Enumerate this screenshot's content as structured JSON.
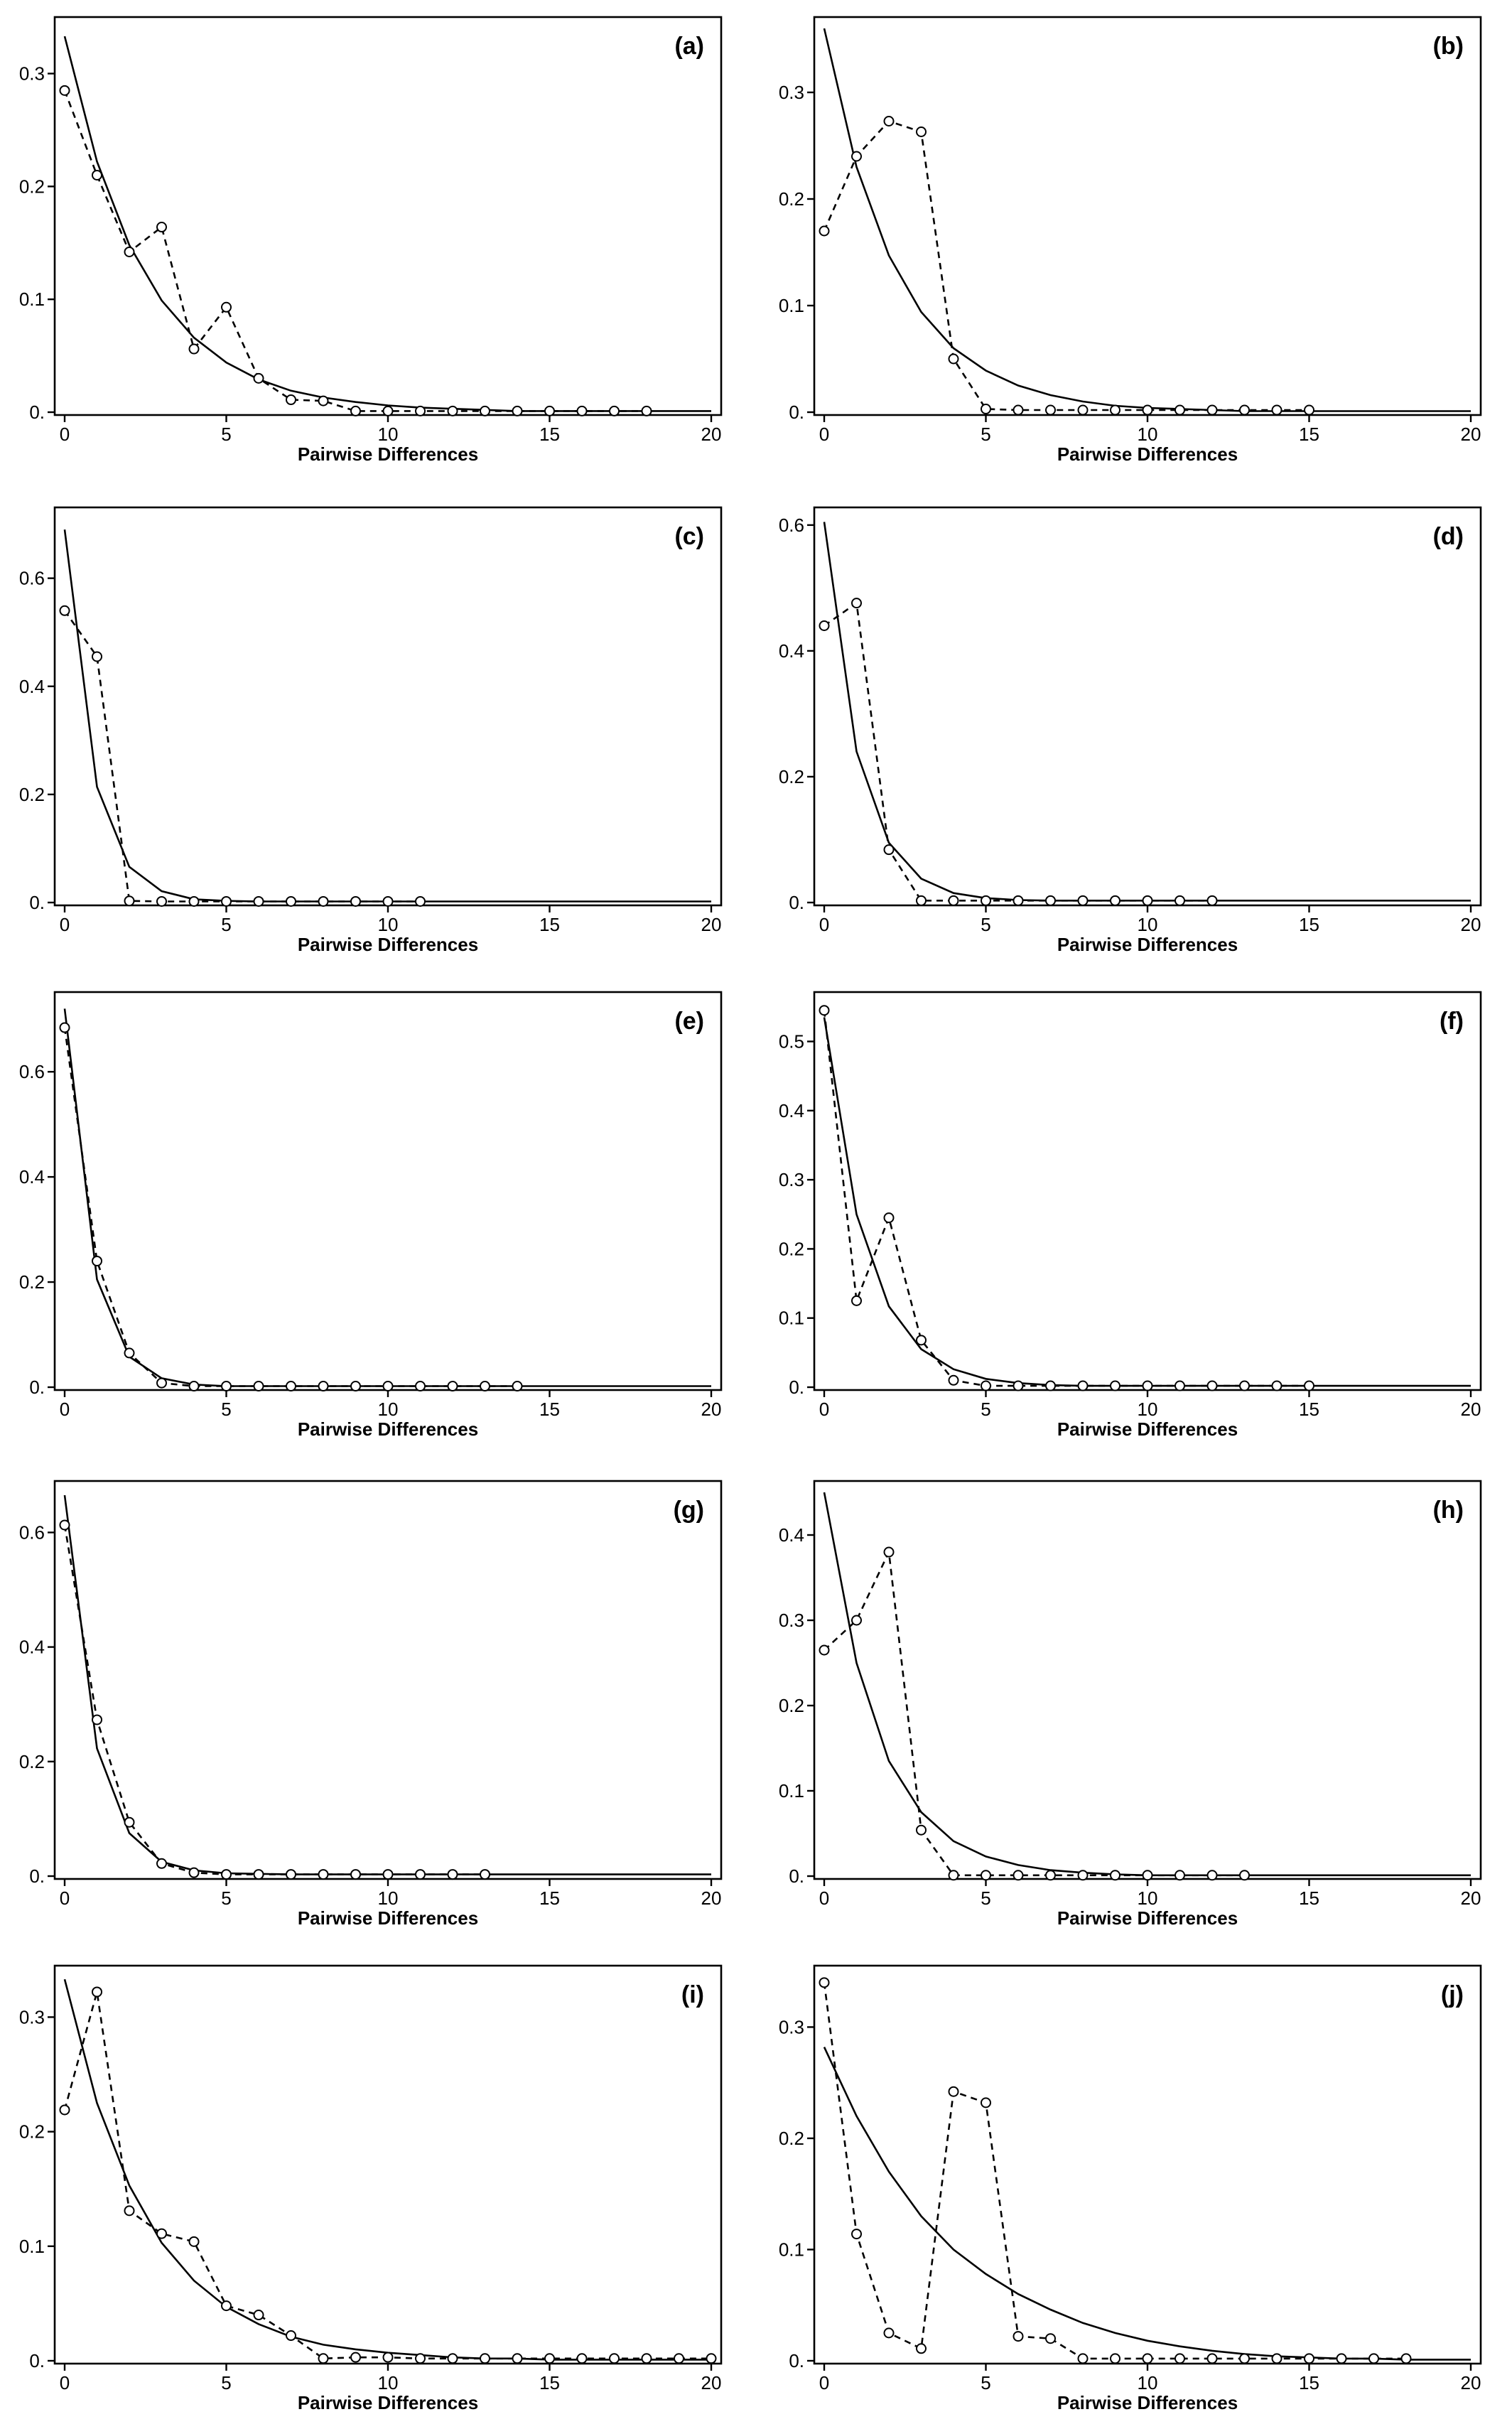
{
  "chart_data": [
    {
      "type": "line",
      "panel_label": "(a)",
      "xlabel": "Pairwise Differences",
      "ylabel": "",
      "xlim": [
        0,
        20
      ],
      "ylim": [
        0,
        0.34
      ],
      "xticks": [
        0,
        5,
        10,
        15,
        20
      ],
      "xtick_labels": [
        "0",
        "5",
        "10",
        "15",
        "20"
      ],
      "yticks": [
        0,
        0.1,
        0.2,
        0.3
      ],
      "ytick_labels": [
        "0.",
        "0.1",
        "0.2",
        "0.3"
      ],
      "observed": {
        "x": [
          0,
          1,
          2,
          3,
          4,
          5,
          6,
          7,
          8,
          9,
          10,
          11,
          12,
          13,
          14,
          15,
          16,
          17,
          18
        ],
        "y": [
          0.285,
          0.21,
          0.142,
          0.164,
          0.056,
          0.093,
          0.03,
          0.011,
          0.01,
          0.001,
          0.001,
          0.001,
          0.001,
          0.001,
          0.001,
          0.001,
          0.001,
          0.001,
          0.001
        ]
      },
      "expected": {
        "x": [
          0,
          1,
          2,
          3,
          4,
          5,
          6,
          7,
          8,
          9,
          10,
          11,
          12,
          13,
          14,
          15,
          16,
          17,
          18,
          19,
          20
        ],
        "y": [
          0.333,
          0.222,
          0.148,
          0.099,
          0.066,
          0.044,
          0.029,
          0.019,
          0.013,
          0.009,
          0.006,
          0.004,
          0.003,
          0.002,
          0.001,
          0.001,
          0.001,
          0.001,
          0.001,
          0.001,
          0.001
        ]
      }
    },
    {
      "type": "line",
      "panel_label": "(b)",
      "xlabel": "Pairwise Differences",
      "ylabel": "",
      "xlim": [
        0,
        20
      ],
      "ylim": [
        0,
        0.36
      ],
      "xticks": [
        0,
        5,
        10,
        15,
        20
      ],
      "xtick_labels": [
        "0",
        "5",
        "10",
        "15",
        "20"
      ],
      "yticks": [
        0,
        0.1,
        0.2,
        0.3
      ],
      "ytick_labels": [
        "0.",
        "0.1",
        "0.2",
        "0.3"
      ],
      "observed": {
        "x": [
          0,
          1,
          2,
          3,
          4,
          5,
          6,
          7,
          8,
          9,
          10,
          11,
          12,
          13,
          14,
          15
        ],
        "y": [
          0.17,
          0.24,
          0.273,
          0.263,
          0.05,
          0.003,
          0.002,
          0.002,
          0.002,
          0.002,
          0.002,
          0.002,
          0.002,
          0.002,
          0.002,
          0.002
        ]
      },
      "expected": {
        "x": [
          0,
          1,
          2,
          3,
          4,
          5,
          6,
          7,
          8,
          9,
          10,
          11,
          12,
          13,
          14,
          15,
          16,
          17,
          18,
          19,
          20
        ],
        "y": [
          0.36,
          0.23,
          0.147,
          0.094,
          0.06,
          0.039,
          0.025,
          0.016,
          0.01,
          0.006,
          0.004,
          0.003,
          0.002,
          0.001,
          0.001,
          0.001,
          0.001,
          0.001,
          0.001,
          0.001,
          0.001
        ]
      }
    },
    {
      "type": "line",
      "panel_label": "(c)",
      "xlabel": "Pairwise Differences",
      "ylabel": "",
      "xlim": [
        0,
        20
      ],
      "ylim": [
        0,
        0.71
      ],
      "xticks": [
        0,
        5,
        10,
        15,
        20
      ],
      "xtick_labels": [
        "0",
        "5",
        "10",
        "15",
        "20"
      ],
      "yticks": [
        0,
        0.2,
        0.4,
        0.6
      ],
      "ytick_labels": [
        "0.",
        "0.2",
        "0.4",
        "0.6"
      ],
      "observed": {
        "x": [
          0,
          1,
          2,
          3,
          4,
          5,
          6,
          7,
          8,
          9,
          10,
          11
        ],
        "y": [
          0.54,
          0.455,
          0.003,
          0.002,
          0.002,
          0.002,
          0.002,
          0.002,
          0.002,
          0.002,
          0.002,
          0.002
        ]
      },
      "expected": {
        "x": [
          0,
          1,
          2,
          3,
          4,
          5,
          6,
          7,
          8,
          9,
          10,
          11,
          12,
          13,
          14,
          15,
          16,
          17,
          18,
          19,
          20
        ],
        "y": [
          0.69,
          0.214,
          0.066,
          0.021,
          0.006,
          0.003,
          0.002,
          0.002,
          0.002,
          0.002,
          0.002,
          0.002,
          0.002,
          0.002,
          0.002,
          0.002,
          0.002,
          0.002,
          0.002,
          0.002,
          0.002
        ]
      }
    },
    {
      "type": "line",
      "panel_label": "(d)",
      "xlabel": "Pairwise Differences",
      "ylabel": "",
      "xlim": [
        0,
        20
      ],
      "ylim": [
        0,
        0.61
      ],
      "xticks": [
        0,
        5,
        10,
        15,
        20
      ],
      "xtick_labels": [
        "0",
        "5",
        "10",
        "15",
        "20"
      ],
      "yticks": [
        0,
        0.2,
        0.4,
        0.6
      ],
      "ytick_labels": [
        "0.",
        "0.2",
        "0.4",
        "0.6"
      ],
      "observed": {
        "x": [
          0,
          1,
          2,
          3,
          4,
          5,
          6,
          7,
          8,
          9,
          10,
          11,
          12
        ],
        "y": [
          0.44,
          0.476,
          0.084,
          0.003,
          0.003,
          0.003,
          0.003,
          0.003,
          0.003,
          0.003,
          0.003,
          0.003,
          0.003
        ]
      },
      "expected": {
        "x": [
          0,
          1,
          2,
          3,
          4,
          5,
          6,
          7,
          8,
          9,
          10,
          11,
          12,
          13,
          14,
          15,
          16,
          17,
          18,
          19,
          20
        ],
        "y": [
          0.605,
          0.24,
          0.095,
          0.038,
          0.015,
          0.007,
          0.004,
          0.003,
          0.003,
          0.003,
          0.003,
          0.003,
          0.003,
          0.003,
          0.003,
          0.003,
          0.003,
          0.003,
          0.003,
          0.003,
          0.003
        ]
      }
    },
    {
      "type": "line",
      "panel_label": "(e)",
      "xlabel": "Pairwise Differences",
      "ylabel": "",
      "xlim": [
        0,
        20
      ],
      "ylim": [
        0,
        0.73
      ],
      "xticks": [
        0,
        5,
        10,
        15,
        20
      ],
      "xtick_labels": [
        "0",
        "5",
        "10",
        "15",
        "20"
      ],
      "yticks": [
        0,
        0.2,
        0.4,
        0.6
      ],
      "ytick_labels": [
        "0.",
        "0.2",
        "0.4",
        "0.6"
      ],
      "observed": {
        "x": [
          0,
          1,
          2,
          3,
          4,
          5,
          6,
          7,
          8,
          9,
          10,
          11,
          12,
          13,
          14
        ],
        "y": [
          0.684,
          0.24,
          0.065,
          0.008,
          0.002,
          0.002,
          0.002,
          0.002,
          0.002,
          0.002,
          0.002,
          0.002,
          0.002,
          0.002,
          0.002
        ]
      },
      "expected": {
        "x": [
          0,
          1,
          2,
          3,
          4,
          5,
          6,
          7,
          8,
          9,
          10,
          11,
          12,
          13,
          14,
          15,
          16,
          17,
          18,
          19,
          20
        ],
        "y": [
          0.72,
          0.205,
          0.058,
          0.017,
          0.005,
          0.002,
          0.002,
          0.002,
          0.002,
          0.002,
          0.002,
          0.002,
          0.002,
          0.002,
          0.002,
          0.002,
          0.002,
          0.002,
          0.002,
          0.002,
          0.002
        ]
      }
    },
    {
      "type": "line",
      "panel_label": "(f)",
      "xlabel": "Pairwise Differences",
      "ylabel": "",
      "xlim": [
        0,
        20
      ],
      "ylim": [
        0,
        0.555
      ],
      "xticks": [
        0,
        5,
        10,
        15,
        20
      ],
      "xtick_labels": [
        "0",
        "5",
        "10",
        "15",
        "20"
      ],
      "yticks": [
        0,
        0.1,
        0.2,
        0.3,
        0.4,
        0.5
      ],
      "ytick_labels": [
        "0.",
        "0.1",
        "0.2",
        "0.3",
        "0.4",
        "0.5"
      ],
      "observed": {
        "x": [
          0,
          1,
          2,
          3,
          4,
          5,
          6,
          7,
          8,
          9,
          10,
          11,
          12,
          13,
          14,
          15
        ],
        "y": [
          0.545,
          0.125,
          0.245,
          0.068,
          0.01,
          0.002,
          0.002,
          0.002,
          0.002,
          0.002,
          0.002,
          0.002,
          0.002,
          0.002,
          0.002,
          0.002
        ]
      },
      "expected": {
        "x": [
          0,
          1,
          2,
          3,
          4,
          5,
          6,
          7,
          8,
          9,
          10,
          11,
          12,
          13,
          14,
          15,
          16,
          17,
          18,
          19,
          20
        ],
        "y": [
          0.535,
          0.25,
          0.117,
          0.055,
          0.026,
          0.012,
          0.006,
          0.003,
          0.002,
          0.002,
          0.002,
          0.002,
          0.002,
          0.002,
          0.002,
          0.002,
          0.002,
          0.002,
          0.002,
          0.002,
          0.002
        ]
      }
    },
    {
      "type": "line",
      "panel_label": "(g)",
      "xlabel": "Pairwise Differences",
      "ylabel": "",
      "xlim": [
        0,
        20
      ],
      "ylim": [
        0,
        0.67
      ],
      "xticks": [
        0,
        5,
        10,
        15,
        20
      ],
      "xtick_labels": [
        "0",
        "5",
        "10",
        "15",
        "20"
      ],
      "yticks": [
        0,
        0.2,
        0.4,
        0.6
      ],
      "ytick_labels": [
        "0.",
        "0.2",
        "0.4",
        "0.6"
      ],
      "observed": {
        "x": [
          0,
          1,
          2,
          3,
          4,
          5,
          6,
          7,
          8,
          9,
          10,
          11,
          12,
          13
        ],
        "y": [
          0.613,
          0.273,
          0.094,
          0.022,
          0.006,
          0.003,
          0.003,
          0.003,
          0.003,
          0.003,
          0.003,
          0.003,
          0.003,
          0.003
        ]
      },
      "expected": {
        "x": [
          0,
          1,
          2,
          3,
          4,
          5,
          6,
          7,
          8,
          9,
          10,
          11,
          12,
          13,
          14,
          15,
          16,
          17,
          18,
          19,
          20
        ],
        "y": [
          0.665,
          0.223,
          0.075,
          0.025,
          0.01,
          0.005,
          0.004,
          0.003,
          0.003,
          0.003,
          0.003,
          0.003,
          0.003,
          0.003,
          0.003,
          0.003,
          0.003,
          0.003,
          0.003,
          0.003,
          0.003
        ]
      }
    },
    {
      "type": "line",
      "panel_label": "(h)",
      "xlabel": "Pairwise Differences",
      "ylabel": "",
      "xlim": [
        0,
        20
      ],
      "ylim": [
        0,
        0.45
      ],
      "xticks": [
        0,
        5,
        10,
        15,
        20
      ],
      "xtick_labels": [
        "0",
        "5",
        "10",
        "15",
        "20"
      ],
      "yticks": [
        0,
        0.1,
        0.2,
        0.3,
        0.4
      ],
      "ytick_labels": [
        "0.",
        "0.1",
        "0.2",
        "0.3",
        "0.4"
      ],
      "observed": {
        "x": [
          0,
          1,
          2,
          3,
          4,
          5,
          6,
          7,
          8,
          9,
          10,
          11,
          12,
          13
        ],
        "y": [
          0.265,
          0.3,
          0.38,
          0.054,
          0.001,
          0.001,
          0.001,
          0.001,
          0.001,
          0.001,
          0.001,
          0.001,
          0.001,
          0.001
        ]
      },
      "expected": {
        "x": [
          0,
          1,
          2,
          3,
          4,
          5,
          6,
          7,
          8,
          9,
          10,
          11,
          12,
          13,
          14,
          15,
          16,
          17,
          18,
          19,
          20
        ],
        "y": [
          0.45,
          0.25,
          0.135,
          0.075,
          0.041,
          0.023,
          0.013,
          0.007,
          0.004,
          0.002,
          0.001,
          0.001,
          0.001,
          0.001,
          0.001,
          0.001,
          0.001,
          0.001,
          0.001,
          0.001,
          0.001
        ]
      }
    },
    {
      "type": "line",
      "panel_label": "(i)",
      "xlabel": "Pairwise Differences",
      "ylabel": "",
      "xlim": [
        0,
        20
      ],
      "ylim": [
        0,
        0.335
      ],
      "xticks": [
        0,
        5,
        10,
        15,
        20
      ],
      "xtick_labels": [
        "0",
        "5",
        "10",
        "15",
        "20"
      ],
      "yticks": [
        0,
        0.1,
        0.2,
        0.3
      ],
      "ytick_labels": [
        "0.",
        "0.1",
        "0.2",
        "0.3"
      ],
      "observed": {
        "x": [
          0,
          1,
          2,
          3,
          4,
          5,
          6,
          7,
          8,
          9,
          10,
          11,
          12,
          13,
          14,
          15,
          16,
          17,
          18,
          19,
          20
        ],
        "y": [
          0.219,
          0.322,
          0.131,
          0.111,
          0.104,
          0.048,
          0.04,
          0.022,
          0.002,
          0.003,
          0.003,
          0.002,
          0.002,
          0.002,
          0.002,
          0.002,
          0.002,
          0.002,
          0.002,
          0.002,
          0.002
        ]
      },
      "expected": {
        "x": [
          0,
          1,
          2,
          3,
          4,
          5,
          6,
          7,
          8,
          9,
          10,
          11,
          12,
          13,
          14,
          15,
          16,
          17,
          18,
          19,
          20
        ],
        "y": [
          0.333,
          0.225,
          0.153,
          0.103,
          0.07,
          0.047,
          0.032,
          0.021,
          0.014,
          0.01,
          0.007,
          0.005,
          0.003,
          0.002,
          0.002,
          0.001,
          0.001,
          0.001,
          0.001,
          0.001,
          0.001
        ]
      }
    },
    {
      "type": "line",
      "panel_label": "(j)",
      "xlabel": "Pairwise Differences",
      "ylabel": "",
      "xlim": [
        0,
        20
      ],
      "ylim": [
        0,
        0.345
      ],
      "xticks": [
        0,
        5,
        10,
        15,
        20
      ],
      "xtick_labels": [
        "0",
        "5",
        "10",
        "15",
        "20"
      ],
      "yticks": [
        0,
        0.1,
        0.2,
        0.3
      ],
      "ytick_labels": [
        "0.",
        "0.1",
        "0.2",
        "0.3"
      ],
      "observed": {
        "x": [
          0,
          1,
          2,
          3,
          4,
          5,
          6,
          7,
          8,
          9,
          10,
          11,
          12,
          13,
          14,
          15,
          16,
          17,
          18
        ],
        "y": [
          0.34,
          0.114,
          0.025,
          0.011,
          0.242,
          0.232,
          0.022,
          0.02,
          0.002,
          0.002,
          0.002,
          0.002,
          0.002,
          0.002,
          0.002,
          0.002,
          0.002,
          0.002,
          0.002
        ]
      },
      "expected": {
        "x": [
          0,
          1,
          2,
          3,
          4,
          5,
          6,
          7,
          8,
          9,
          10,
          11,
          12,
          13,
          14,
          15,
          16,
          17,
          18,
          19,
          20
        ],
        "y": [
          0.282,
          0.22,
          0.17,
          0.13,
          0.1,
          0.078,
          0.06,
          0.046,
          0.034,
          0.025,
          0.018,
          0.013,
          0.009,
          0.006,
          0.004,
          0.003,
          0.002,
          0.002,
          0.001,
          0.001,
          0.001
        ]
      }
    }
  ]
}
